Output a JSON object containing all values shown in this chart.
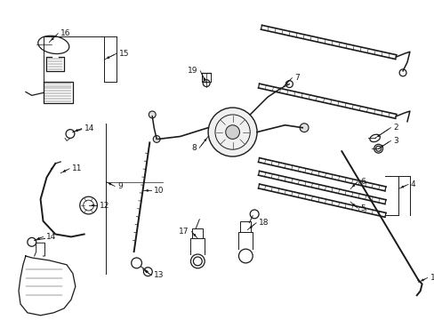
{
  "bg_color": "#ffffff",
  "line_color": "#1a1a1a",
  "fig_width": 4.89,
  "fig_height": 3.6,
  "dpi": 100,
  "lw": 0.9
}
